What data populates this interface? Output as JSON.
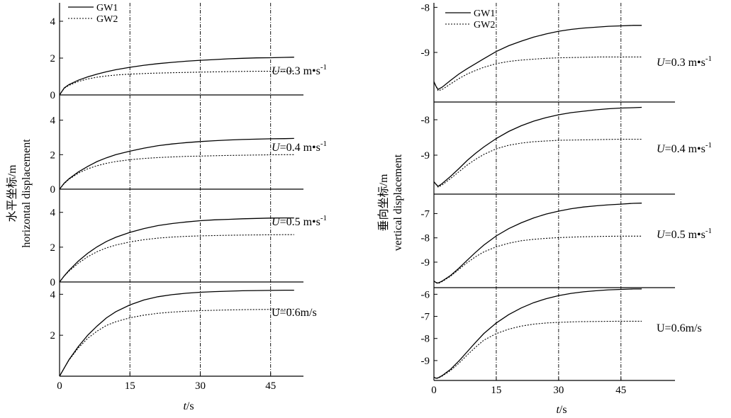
{
  "chart_data": [
    {
      "type": "line",
      "side": "left",
      "ylabel": [
        "水平坐标/m",
        "horizontal displacement"
      ],
      "xlabel_var": "t",
      "xlabel_unit": "/s",
      "xticks": [
        0,
        15,
        30,
        45
      ],
      "xlim": [
        0,
        52
      ],
      "vlines": [
        15,
        30,
        45
      ],
      "legend": [
        "GW1",
        "GW2"
      ],
      "panels": [
        {
          "label": {
            "var": "U",
            "rest": "=0.3 m•s",
            "sup": "-1"
          },
          "ylim": [
            0,
            5
          ],
          "yticks": [
            0,
            2,
            4
          ],
          "series": [
            {
              "name": "GW1",
              "style": "solid",
              "x": [
                0,
                1,
                2,
                4,
                6,
                8,
                10,
                12,
                15,
                18,
                21,
                24,
                27,
                30,
                33,
                36,
                39,
                42,
                45,
                48,
                50
              ],
              "y": [
                0,
                0.38,
                0.56,
                0.8,
                0.98,
                1.13,
                1.26,
                1.37,
                1.5,
                1.61,
                1.7,
                1.77,
                1.83,
                1.88,
                1.92,
                1.96,
                1.99,
                2.01,
                2.02,
                2.04,
                2.05
              ]
            },
            {
              "name": "GW2",
              "style": "dotted",
              "x": [
                0,
                1,
                2,
                4,
                6,
                8,
                10,
                12,
                15,
                20,
                25,
                30,
                35,
                40,
                45,
                48,
                50
              ],
              "y": [
                0,
                0.36,
                0.52,
                0.73,
                0.87,
                0.96,
                1.03,
                1.08,
                1.13,
                1.18,
                1.21,
                1.24,
                1.26,
                1.28,
                1.29,
                1.29,
                1.3
              ]
            }
          ]
        },
        {
          "label": {
            "var": "U",
            "rest": "=0.4 m•s",
            "sup": "-1"
          },
          "ylim": [
            0,
            4.6
          ],
          "yticks": [
            0,
            2,
            4
          ],
          "series": [
            {
              "name": "GW1",
              "style": "solid",
              "x": [
                0,
                1,
                2,
                4,
                6,
                8,
                10,
                12,
                15,
                18,
                21,
                24,
                27,
                30,
                33,
                36,
                39,
                42,
                45,
                48,
                50
              ],
              "y": [
                0,
                0.35,
                0.6,
                1.0,
                1.32,
                1.6,
                1.82,
                2.0,
                2.2,
                2.38,
                2.52,
                2.62,
                2.7,
                2.76,
                2.81,
                2.85,
                2.88,
                2.9,
                2.92,
                2.93,
                2.94
              ]
            },
            {
              "name": "GW2",
              "style": "dotted",
              "x": [
                0,
                1,
                2,
                4,
                6,
                8,
                10,
                12,
                15,
                18,
                21,
                24,
                27,
                30,
                35,
                40,
                45,
                48,
                50
              ],
              "y": [
                0,
                0.33,
                0.57,
                0.93,
                1.18,
                1.36,
                1.5,
                1.6,
                1.71,
                1.78,
                1.83,
                1.87,
                1.9,
                1.92,
                1.95,
                1.97,
                1.99,
                2.0,
                2.0
              ]
            }
          ]
        },
        {
          "label": {
            "var": "U",
            "rest": "=0.5 m•s",
            "sup": "-1"
          },
          "ylim": [
            0,
            4.6
          ],
          "yticks": [
            0,
            2,
            4
          ],
          "series": [
            {
              "name": "GW1",
              "style": "solid",
              "x": [
                0,
                1,
                2,
                4,
                6,
                8,
                10,
                12,
                15,
                18,
                21,
                24,
                27,
                30,
                33,
                36,
                39,
                42,
                45,
                48,
                50
              ],
              "y": [
                0,
                0.35,
                0.66,
                1.2,
                1.65,
                2.02,
                2.33,
                2.57,
                2.85,
                3.07,
                3.24,
                3.36,
                3.45,
                3.52,
                3.57,
                3.6,
                3.63,
                3.65,
                3.67,
                3.68,
                3.68
              ]
            },
            {
              "name": "GW2",
              "style": "dotted",
              "x": [
                0,
                1,
                2,
                4,
                6,
                8,
                10,
                12,
                15,
                18,
                21,
                24,
                27,
                30,
                35,
                40,
                45,
                48,
                50
              ],
              "y": [
                0,
                0.34,
                0.62,
                1.08,
                1.45,
                1.74,
                1.96,
                2.12,
                2.3,
                2.43,
                2.52,
                2.58,
                2.62,
                2.65,
                2.68,
                2.7,
                2.71,
                2.72,
                2.72
              ]
            }
          ]
        },
        {
          "label": {
            "var": "",
            "rest": "U=0.6m/s",
            "sup": ""
          },
          "ylim": [
            0,
            4.6
          ],
          "yticks": [
            2,
            4
          ],
          "series": [
            {
              "name": "GW1",
              "style": "solid",
              "x": [
                0,
                1,
                2,
                4,
                6,
                8,
                10,
                12,
                15,
                18,
                21,
                24,
                27,
                30,
                33,
                36,
                39,
                42,
                45,
                48,
                50
              ],
              "y": [
                0,
                0.4,
                0.8,
                1.45,
                2.0,
                2.45,
                2.85,
                3.15,
                3.48,
                3.72,
                3.88,
                3.98,
                4.05,
                4.1,
                4.13,
                4.15,
                4.17,
                4.18,
                4.19,
                4.2,
                4.2
              ]
            },
            {
              "name": "GW2",
              "style": "dotted",
              "x": [
                0,
                1,
                2,
                4,
                6,
                8,
                10,
                12,
                15,
                18,
                21,
                24,
                27,
                30,
                35,
                40,
                45,
                48,
                50
              ],
              "y": [
                0,
                0.4,
                0.78,
                1.38,
                1.85,
                2.2,
                2.48,
                2.66,
                2.85,
                2.98,
                3.07,
                3.13,
                3.17,
                3.2,
                3.23,
                3.25,
                3.26,
                3.27,
                3.27
              ]
            }
          ]
        }
      ]
    },
    {
      "type": "line",
      "side": "right",
      "ylabel": [
        "垂向坐标/m",
        "vertical displacement"
      ],
      "xlabel_var": "t",
      "xlabel_unit": "/s",
      "xticks": [
        0,
        15,
        30,
        45
      ],
      "xlim": [
        0,
        58
      ],
      "vlines": [
        15,
        30,
        45
      ],
      "legend": [
        "GW1",
        "GW2"
      ],
      "panels": [
        {
          "label": {
            "var": "U",
            "rest": "=0.3 m•s",
            "sup": "-1"
          },
          "ylim": [
            -10.1,
            -7.9
          ],
          "yticks": [
            -9,
            -8
          ],
          "series": [
            {
              "name": "GW1",
              "style": "solid",
              "x": [
                0,
                0.5,
                1,
                2,
                4,
                6,
                8,
                10,
                12,
                15,
                18,
                21,
                24,
                27,
                30,
                33,
                36,
                39,
                42,
                45,
                48,
                50
              ],
              "y": [
                -9.65,
                -9.75,
                -9.82,
                -9.77,
                -9.62,
                -9.48,
                -9.36,
                -9.25,
                -9.14,
                -8.98,
                -8.85,
                -8.75,
                -8.66,
                -8.59,
                -8.53,
                -8.49,
                -8.46,
                -8.44,
                -8.42,
                -8.41,
                -8.4,
                -8.4
              ]
            },
            {
              "name": "GW2",
              "style": "dotted",
              "x": [
                0,
                0.5,
                1,
                2,
                4,
                6,
                8,
                10,
                12,
                15,
                18,
                21,
                24,
                27,
                30,
                35,
                40,
                45,
                48,
                50
              ],
              "y": [
                -9.65,
                -9.75,
                -9.85,
                -9.82,
                -9.7,
                -9.58,
                -9.48,
                -9.4,
                -9.33,
                -9.25,
                -9.2,
                -9.17,
                -9.15,
                -9.13,
                -9.12,
                -9.11,
                -9.1,
                -9.1,
                -9.1,
                -9.1
              ]
            }
          ]
        },
        {
          "label": {
            "var": "U",
            "rest": "=0.4 m•s",
            "sup": "-1"
          },
          "ylim": [
            -10.1,
            -7.5
          ],
          "yticks": [
            -9,
            -8
          ],
          "series": [
            {
              "name": "GW1",
              "style": "solid",
              "x": [
                0,
                0.5,
                1,
                2,
                4,
                6,
                8,
                10,
                12,
                15,
                18,
                21,
                24,
                27,
                30,
                33,
                36,
                39,
                42,
                45,
                48,
                50
              ],
              "y": [
                -9.75,
                -9.82,
                -9.88,
                -9.8,
                -9.6,
                -9.38,
                -9.15,
                -8.95,
                -8.77,
                -8.53,
                -8.33,
                -8.17,
                -8.04,
                -7.94,
                -7.86,
                -7.8,
                -7.76,
                -7.72,
                -7.69,
                -7.67,
                -7.66,
                -7.65
              ]
            },
            {
              "name": "GW2",
              "style": "dotted",
              "x": [
                0,
                0.5,
                1,
                2,
                4,
                6,
                8,
                10,
                12,
                15,
                18,
                21,
                24,
                27,
                30,
                35,
                40,
                45,
                48,
                50
              ],
              "y": [
                -9.75,
                -9.82,
                -9.9,
                -9.84,
                -9.66,
                -9.47,
                -9.28,
                -9.12,
                -8.98,
                -8.82,
                -8.72,
                -8.66,
                -8.62,
                -8.6,
                -8.58,
                -8.57,
                -8.56,
                -8.55,
                -8.55,
                -8.55
              ]
            }
          ]
        },
        {
          "label": {
            "var": "U",
            "rest": "=0.5 m•s",
            "sup": "-1"
          },
          "ylim": [
            -10.05,
            -6.2
          ],
          "yticks": [
            -9,
            -8,
            -7
          ],
          "series": [
            {
              "name": "GW1",
              "style": "solid",
              "x": [
                0,
                0.5,
                1,
                2,
                4,
                6,
                8,
                10,
                12,
                15,
                18,
                21,
                24,
                27,
                30,
                33,
                36,
                39,
                42,
                45,
                48,
                50
              ],
              "y": [
                -9.78,
                -9.84,
                -9.86,
                -9.78,
                -9.55,
                -9.25,
                -8.92,
                -8.6,
                -8.3,
                -7.92,
                -7.62,
                -7.38,
                -7.18,
                -7.02,
                -6.9,
                -6.8,
                -6.73,
                -6.68,
                -6.64,
                -6.61,
                -6.58,
                -6.57
              ]
            },
            {
              "name": "GW2",
              "style": "dotted",
              "x": [
                0,
                0.5,
                1,
                2,
                4,
                6,
                8,
                10,
                12,
                15,
                18,
                21,
                24,
                27,
                30,
                35,
                40,
                45,
                48,
                50
              ],
              "y": [
                -9.78,
                -9.85,
                -9.88,
                -9.8,
                -9.58,
                -9.3,
                -9.02,
                -8.78,
                -8.58,
                -8.37,
                -8.22,
                -8.12,
                -8.06,
                -8.02,
                -7.99,
                -7.96,
                -7.94,
                -7.93,
                -7.93,
                -7.93
              ]
            }
          ]
        },
        {
          "label": {
            "var": "",
            "rest": "U=0.6m/s",
            "sup": ""
          },
          "ylim": [
            -9.9,
            -5.7
          ],
          "yticks": [
            -9,
            -8,
            -7,
            -6
          ],
          "series": [
            {
              "name": "GW1",
              "style": "solid",
              "x": [
                0,
                0.5,
                1,
                2,
                4,
                6,
                8,
                10,
                12,
                15,
                18,
                21,
                24,
                27,
                30,
                33,
                36,
                39,
                42,
                45,
                48,
                50
              ],
              "y": [
                -9.75,
                -9.8,
                -9.78,
                -9.68,
                -9.4,
                -9.02,
                -8.6,
                -8.18,
                -7.78,
                -7.3,
                -6.92,
                -6.62,
                -6.38,
                -6.2,
                -6.06,
                -5.96,
                -5.89,
                -5.84,
                -5.8,
                -5.78,
                -5.76,
                -5.76
              ]
            },
            {
              "name": "GW2",
              "style": "dotted",
              "x": [
                0,
                0.5,
                1,
                2,
                4,
                6,
                8,
                10,
                12,
                15,
                18,
                21,
                24,
                27,
                30,
                35,
                40,
                45,
                48,
                50
              ],
              "y": [
                -9.75,
                -9.8,
                -9.8,
                -9.7,
                -9.45,
                -9.12,
                -8.75,
                -8.4,
                -8.08,
                -7.78,
                -7.58,
                -7.44,
                -7.35,
                -7.3,
                -7.27,
                -7.24,
                -7.23,
                -7.22,
                -7.22,
                -7.22
              ]
            }
          ]
        }
      ]
    }
  ]
}
